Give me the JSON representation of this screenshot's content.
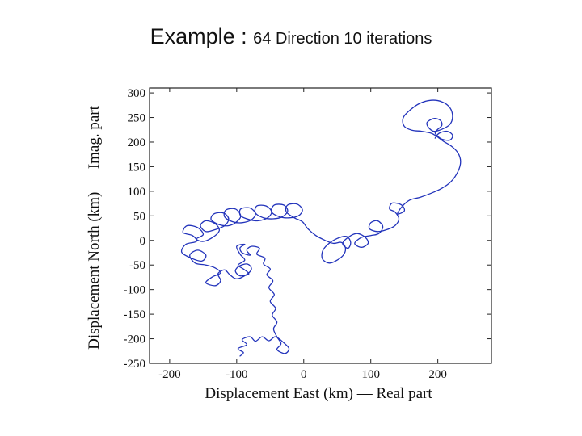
{
  "slide": {
    "title_main": "Example : ",
    "title_sub": "64 Direction 10 iterations"
  },
  "chart_data": {
    "type": "line",
    "title": "",
    "xlabel": "Displacement East (km) — Real part",
    "ylabel": "Displacement North (km) — Imag. part",
    "xlim": [
      -230,
      280
    ],
    "ylim": [
      -250,
      310
    ],
    "xticks": [
      -200,
      -100,
      0,
      100,
      200
    ],
    "yticks": [
      300,
      250,
      200,
      150,
      100,
      50,
      0,
      -50,
      -100,
      -150,
      -200,
      -250
    ],
    "grid": false,
    "line_color": "#2233bb",
    "series": [
      {
        "values": [
          [
            -95,
            -235
          ],
          [
            -90,
            -228
          ],
          [
            -98,
            -220
          ],
          [
            -85,
            -212
          ],
          [
            -92,
            -202
          ],
          [
            -80,
            -196
          ],
          [
            -72,
            -205
          ],
          [
            -62,
            -196
          ],
          [
            -52,
            -204
          ],
          [
            -42,
            -196
          ],
          [
            -30,
            -208
          ],
          [
            -22,
            -220
          ],
          [
            -28,
            -230
          ],
          [
            -40,
            -222
          ],
          [
            -34,
            -210
          ],
          [
            -40,
            -196
          ],
          [
            -45,
            -180
          ],
          [
            -40,
            -166
          ],
          [
            -47,
            -152
          ],
          [
            -42,
            -138
          ],
          [
            -50,
            -124
          ],
          [
            -44,
            -110
          ],
          [
            -52,
            -96
          ],
          [
            -46,
            -82
          ],
          [
            -55,
            -70
          ],
          [
            -50,
            -58
          ],
          [
            -60,
            -48
          ],
          [
            -58,
            -36
          ],
          [
            -70,
            -28
          ],
          [
            -66,
            -16
          ],
          [
            -78,
            -12
          ],
          [
            -85,
            -20
          ],
          [
            -80,
            -30
          ],
          [
            -92,
            -25
          ],
          [
            -95,
            -15
          ],
          [
            -88,
            -8
          ],
          [
            -100,
            -12
          ],
          [
            -95,
            -28
          ],
          [
            -88,
            -40
          ],
          [
            -98,
            -50
          ],
          [
            -90,
            -58
          ],
          [
            -82,
            -68
          ],
          [
            -95,
            -72
          ],
          [
            -102,
            -62
          ],
          [
            -96,
            -52
          ],
          [
            -84,
            -48
          ],
          [
            -78,
            -58
          ],
          [
            -86,
            -70
          ],
          [
            -100,
            -78
          ],
          [
            -110,
            -70
          ],
          [
            -118,
            -60
          ],
          [
            -128,
            -68
          ],
          [
            -124,
            -82
          ],
          [
            -132,
            -92
          ],
          [
            -146,
            -86
          ],
          [
            -136,
            -74
          ],
          [
            -124,
            -66
          ],
          [
            -132,
            -56
          ],
          [
            -146,
            -50
          ],
          [
            -162,
            -46
          ],
          [
            -170,
            -30
          ],
          [
            -158,
            -20
          ],
          [
            -146,
            -30
          ],
          [
            -152,
            -42
          ],
          [
            -168,
            -36
          ],
          [
            -182,
            -24
          ],
          [
            -176,
            -8
          ],
          [
            -160,
            -2
          ],
          [
            -166,
            10
          ],
          [
            -180,
            16
          ],
          [
            -174,
            30
          ],
          [
            -158,
            26
          ],
          [
            -150,
            12
          ],
          [
            -160,
            3
          ],
          [
            -150,
            -2
          ],
          [
            -136,
            6
          ],
          [
            -126,
            20
          ],
          [
            -132,
            34
          ],
          [
            -146,
            40
          ],
          [
            -154,
            30
          ],
          [
            -146,
            18
          ],
          [
            -132,
            22
          ],
          [
            -118,
            30
          ],
          [
            -112,
            44
          ],
          [
            -120,
            56
          ],
          [
            -134,
            54
          ],
          [
            -138,
            42
          ],
          [
            -126,
            32
          ],
          [
            -112,
            30
          ],
          [
            -100,
            38
          ],
          [
            -94,
            50
          ],
          [
            -102,
            64
          ],
          [
            -116,
            62
          ],
          [
            -118,
            48
          ],
          [
            -106,
            38
          ],
          [
            -92,
            36
          ],
          [
            -78,
            42
          ],
          [
            -72,
            54
          ],
          [
            -80,
            66
          ],
          [
            -94,
            64
          ],
          [
            -94,
            50
          ],
          [
            -80,
            42
          ],
          [
            -68,
            40
          ],
          [
            -54,
            46
          ],
          [
            -48,
            58
          ],
          [
            -56,
            70
          ],
          [
            -70,
            70
          ],
          [
            -72,
            56
          ],
          [
            -60,
            46
          ],
          [
            -46,
            44
          ],
          [
            -32,
            48
          ],
          [
            -24,
            60
          ],
          [
            -30,
            72
          ],
          [
            -44,
            72
          ],
          [
            -48,
            58
          ],
          [
            -36,
            48
          ],
          [
            -22,
            46
          ],
          [
            -8,
            50
          ],
          [
            -2,
            62
          ],
          [
            -10,
            74
          ],
          [
            -24,
            72
          ],
          [
            -26,
            58
          ],
          [
            -14,
            46
          ],
          [
            -2,
            38
          ],
          [
            6,
            24
          ],
          [
            18,
            10
          ],
          [
            32,
            0
          ],
          [
            44,
            -6
          ],
          [
            56,
            -4
          ],
          [
            62,
            -14
          ],
          [
            60,
            -28
          ],
          [
            50,
            -40
          ],
          [
            38,
            -46
          ],
          [
            28,
            -38
          ],
          [
            28,
            -22
          ],
          [
            36,
            -8
          ],
          [
            50,
            4
          ],
          [
            64,
            8
          ],
          [
            70,
            -4
          ],
          [
            66,
            -16
          ],
          [
            58,
            -6
          ],
          [
            68,
            8
          ],
          [
            80,
            14
          ],
          [
            92,
            6
          ],
          [
            96,
            -6
          ],
          [
            86,
            -14
          ],
          [
            76,
            -6
          ],
          [
            86,
            6
          ],
          [
            100,
            10
          ],
          [
            112,
            14
          ],
          [
            118,
            28
          ],
          [
            110,
            40
          ],
          [
            100,
            36
          ],
          [
            98,
            24
          ],
          [
            110,
            18
          ],
          [
            124,
            22
          ],
          [
            136,
            30
          ],
          [
            142,
            44
          ],
          [
            136,
            58
          ],
          [
            128,
            64
          ],
          [
            132,
            76
          ],
          [
            146,
            72
          ],
          [
            150,
            60
          ],
          [
            140,
            54
          ],
          [
            146,
            68
          ],
          [
            158,
            82
          ],
          [
            174,
            88
          ],
          [
            190,
            96
          ],
          [
            206,
            106
          ],
          [
            220,
            120
          ],
          [
            230,
            140
          ],
          [
            234,
            160
          ],
          [
            230,
            178
          ],
          [
            220,
            192
          ],
          [
            208,
            202
          ],
          [
            198,
            212
          ],
          [
            190,
            218
          ],
          [
            176,
            222
          ],
          [
            162,
            224
          ],
          [
            150,
            232
          ],
          [
            148,
            248
          ],
          [
            156,
            262
          ],
          [
            172,
            278
          ],
          [
            190,
            285
          ],
          [
            206,
            282
          ],
          [
            218,
            270
          ],
          [
            222,
            252
          ],
          [
            218,
            236
          ],
          [
            206,
            226
          ],
          [
            194,
            222
          ],
          [
            186,
            230
          ],
          [
            184,
            240
          ],
          [
            194,
            248
          ],
          [
            204,
            244
          ],
          [
            206,
            234
          ],
          [
            200,
            226
          ],
          [
            196,
            220
          ],
          [
            198,
            214
          ],
          [
            206,
            206
          ],
          [
            218,
            204
          ],
          [
            222,
            214
          ],
          [
            214,
            222
          ],
          [
            202,
            218
          ],
          [
            196,
            208
          ]
        ]
      }
    ]
  }
}
